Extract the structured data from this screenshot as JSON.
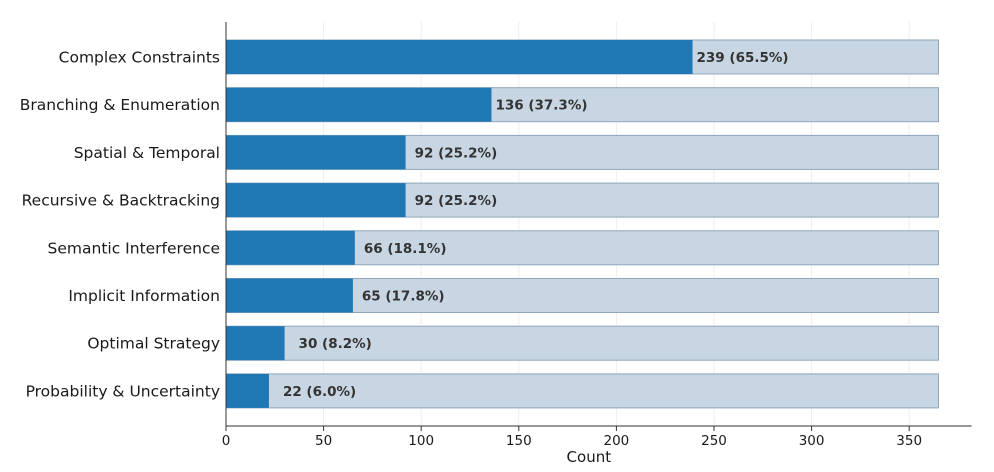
{
  "chart_data": {
    "type": "bar",
    "orientation": "horizontal",
    "categories": [
      "Complex Constraints",
      "Branching & Enumeration",
      "Spatial & Temporal",
      "Recursive & Backtracking",
      "Semantic Interference",
      "Implicit Information",
      "Optimal Strategy",
      "Probability & Uncertainty"
    ],
    "values": [
      239,
      136,
      92,
      92,
      66,
      65,
      30,
      22
    ],
    "total": 365,
    "data_labels": [
      "239 (65.5%)",
      "136 (37.3%)",
      "92 (25.2%)",
      "92 (25.2%)",
      "66 (18.1%)",
      "65 (17.8%)",
      "30 (8.2%)",
      "22 (6.0%)"
    ],
    "title": "",
    "xlabel": "Count",
    "ylabel": "",
    "xlim": [
      0,
      382
    ],
    "x_ticks": [
      0,
      50,
      100,
      150,
      200,
      250,
      300,
      350
    ],
    "grid": "x",
    "legend": "none",
    "colors": {
      "bar": "#1f77b4",
      "background_bar": "#c8d6e3",
      "background_bar_edge": "#8fa6bb",
      "grid": "#eeeeee",
      "axis": "#333333"
    }
  }
}
